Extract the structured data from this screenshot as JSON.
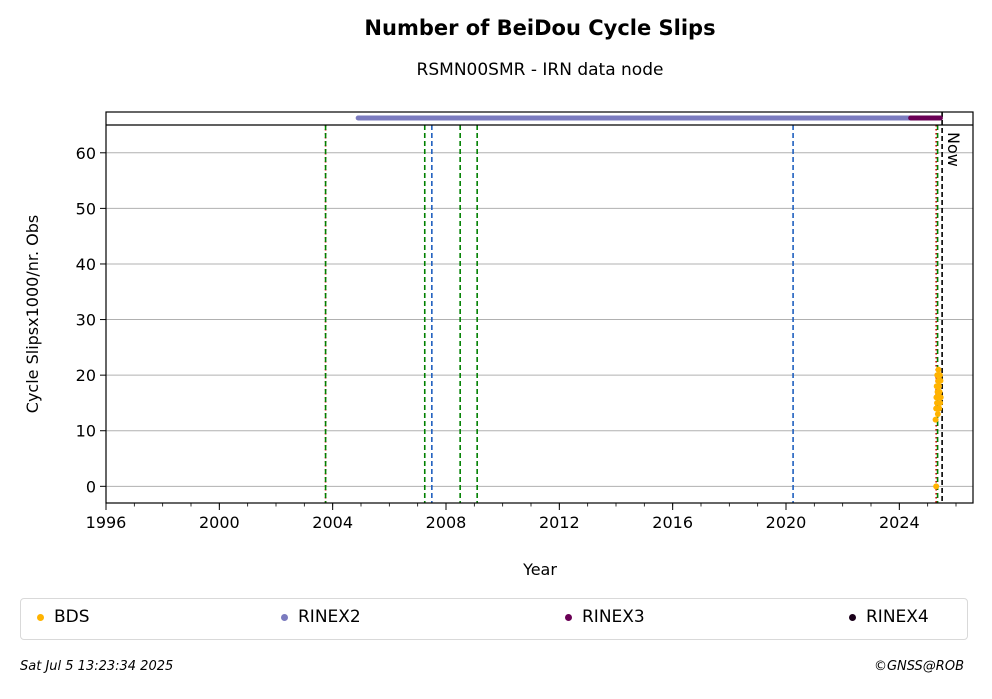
{
  "chart_data": {
    "type": "scatter",
    "title": "Number of BeiDou Cycle Slips",
    "subtitle": "RSMN00SMR - IRN data node",
    "xlabel": "Year",
    "ylabel": "Cycle Slipsx1000/nr. Obs",
    "xlim": [
      1996,
      2026.6
    ],
    "ylim": [
      -3,
      65
    ],
    "x_ticks": [
      1996,
      2000,
      2004,
      2008,
      2012,
      2016,
      2020,
      2024
    ],
    "x_tick_labels": [
      "1996",
      "2000",
      "2004",
      "2008",
      "2012",
      "2016",
      "2020",
      "2024"
    ],
    "y_ticks": [
      0,
      10,
      20,
      30,
      40,
      50,
      60
    ],
    "y_tick_labels": [
      "0",
      "10",
      "20",
      "30",
      "40",
      "50",
      "60"
    ],
    "grid": "horizontal",
    "legend_position": "bottom",
    "now_label": "Now",
    "now_x": 2025.51,
    "vertical_lines": [
      {
        "x": 2003.75,
        "color": "#cc0000",
        "style": "dotted"
      },
      {
        "x": 2003.75,
        "color": "#008000",
        "style": "dashed"
      },
      {
        "x": 2007.25,
        "color": "#008000",
        "style": "dashed"
      },
      {
        "x": 2007.5,
        "color": "#1f5fbf",
        "style": "dashed"
      },
      {
        "x": 2008.5,
        "color": "#008000",
        "style": "dashed"
      },
      {
        "x": 2009.1,
        "color": "#008000",
        "style": "dashed"
      },
      {
        "x": 2020.25,
        "color": "#1f5fbf",
        "style": "dashed"
      },
      {
        "x": 2025.3,
        "color": "#cc0000",
        "style": "dotted"
      },
      {
        "x": 2025.35,
        "color": "#008000",
        "style": "dashed"
      }
    ],
    "availability_bars": [
      {
        "series": "RINEX2",
        "x_start": 2004.9,
        "x_end": 2025.4,
        "color": "#7b7bbf"
      },
      {
        "series": "RINEX3",
        "x_start": 2024.4,
        "x_end": 2025.45,
        "color": "#6a0055"
      }
    ],
    "series": [
      {
        "name": "BDS",
        "color": "#ffb300",
        "x": [
          2025.28,
          2025.3,
          2025.31,
          2025.32,
          2025.33,
          2025.34,
          2025.35,
          2025.36,
          2025.37,
          2025.38,
          2025.39,
          2025.4,
          2025.41,
          2025.42,
          2025.43,
          2025.44,
          2025.45,
          2025.46,
          2025.3
        ],
        "y": [
          12,
          14,
          16,
          18,
          15,
          20,
          17,
          13,
          19,
          21,
          16,
          18,
          14,
          17,
          20,
          15,
          19,
          16,
          0
        ]
      },
      {
        "name": "RINEX2",
        "color": "#7b7bbf"
      },
      {
        "name": "RINEX3",
        "color": "#6a0055"
      },
      {
        "name": "RINEX4",
        "color": "#1a001a"
      }
    ]
  },
  "footer": {
    "timestamp": "Sat Jul  5 13:23:34 2025",
    "credit": "©GNSS@ROB"
  }
}
